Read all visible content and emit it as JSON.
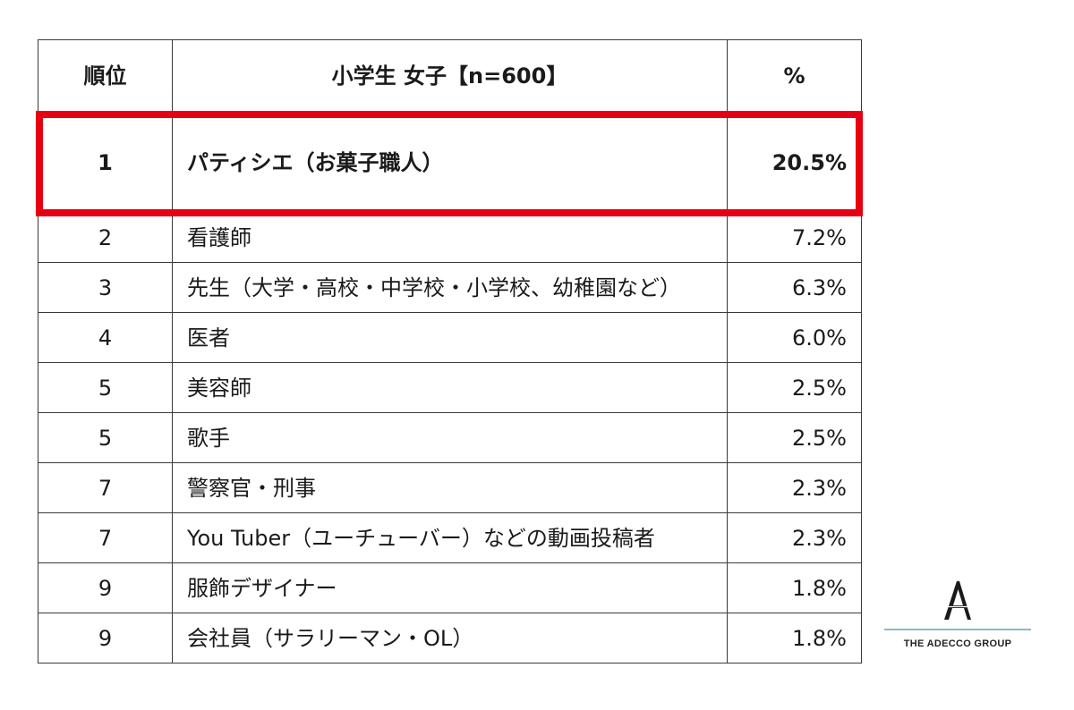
{
  "chart_data": {
    "type": "table",
    "headers": {
      "rank": "順位",
      "job": "小学生 女子【n=600】",
      "percent": "%"
    },
    "rows": [
      {
        "rank": "1",
        "job": "パティシエ（お菓子職人）",
        "percent": "20.5%",
        "value": 20.5,
        "highlighted": true
      },
      {
        "rank": "2",
        "job": "看護師",
        "percent": "7.2%",
        "value": 7.2
      },
      {
        "rank": "3",
        "job": "先生（大学・高校・中学校・小学校、幼稚園など）",
        "percent": "6.3%",
        "value": 6.3
      },
      {
        "rank": "4",
        "job": "医者",
        "percent": "6.0%",
        "value": 6.0
      },
      {
        "rank": "5",
        "job": "美容師",
        "percent": "2.5%",
        "value": 2.5
      },
      {
        "rank": "5",
        "job": "歌手",
        "percent": "2.5%",
        "value": 2.5
      },
      {
        "rank": "7",
        "job": "警察官・刑事",
        "percent": "2.3%",
        "value": 2.3
      },
      {
        "rank": "7",
        "job": "You Tuber（ユーチューバー）などの動画投稿者",
        "percent": "2.3%",
        "value": 2.3
      },
      {
        "rank": "9",
        "job": "服飾デザイナー",
        "percent": "1.8%",
        "value": 1.8
      },
      {
        "rank": "9",
        "job": "会社員（サラリーマン・OL）",
        "percent": "1.8%",
        "value": 1.8
      }
    ],
    "highlight_color": "#e60012"
  },
  "logo": {
    "text": "THE ADECCO GROUP",
    "line_color": "#8fb8c9"
  }
}
